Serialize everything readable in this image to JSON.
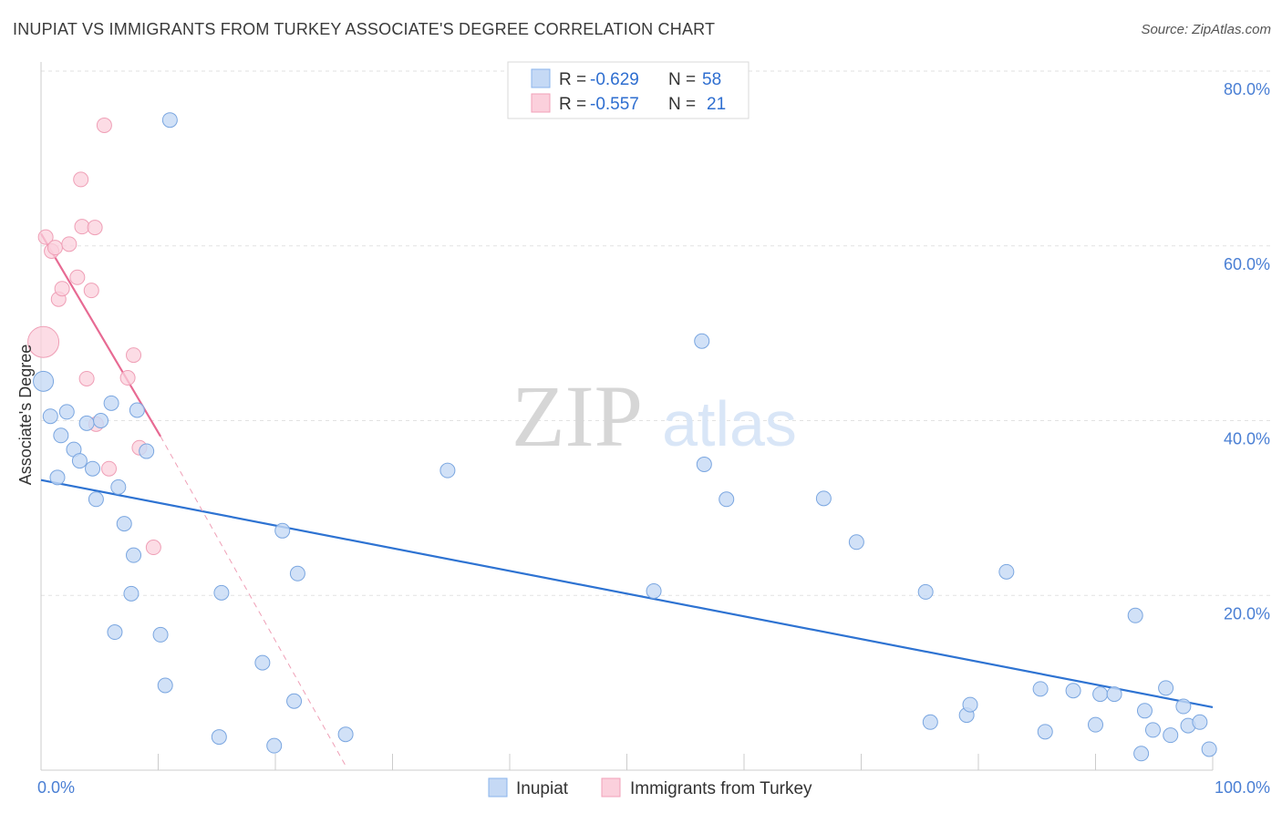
{
  "title": "INUPIAT VS IMMIGRANTS FROM TURKEY ASSOCIATE'S DEGREE CORRELATION CHART",
  "source": "Source: ZipAtlas.com",
  "watermark": {
    "zip": "ZIP",
    "atlas": "atlas"
  },
  "legend": {
    "r_label": "R =",
    "n_label": "N =",
    "rows": [
      {
        "r": "-0.629",
        "n": "58",
        "color": "#8ab4ec",
        "fill": "#c5d9f5"
      },
      {
        "r": "-0.557",
        "n": "21",
        "color": "#f2a0b8",
        "fill": "#fbd0dc"
      }
    ]
  },
  "colors": {
    "blue_fill": "#c5d9f5",
    "blue_stroke": "#7aa6e0",
    "blue_line": "#2e73d2",
    "pink_fill": "#fbd0dc",
    "pink_stroke": "#ef9fb6",
    "pink_line": "#e76a93",
    "tick_text": "#4a7fd4",
    "grid": "#e2e2e2"
  },
  "chart_data": {
    "type": "scatter",
    "ylabel": "Associate's Degree",
    "xlim": [
      0,
      100
    ],
    "ylim": [
      0,
      80
    ],
    "x_tick_labels": [
      "0.0%",
      "100.0%"
    ],
    "y_ticks": [
      20,
      40,
      60,
      80
    ],
    "y_tick_labels": [
      "20.0%",
      "40.0%",
      "60.0%",
      "80.0%"
    ],
    "grid": true,
    "series": [
      {
        "name": "Inupiat",
        "points": [
          [
            0.2,
            44.5
          ],
          [
            0.8,
            40.5
          ],
          [
            1.4,
            33.5
          ],
          [
            1.7,
            38.3
          ],
          [
            2.2,
            41
          ],
          [
            2.8,
            36.7
          ],
          [
            3.3,
            35.4
          ],
          [
            3.9,
            39.7
          ],
          [
            4.4,
            34.5
          ],
          [
            4.7,
            31
          ],
          [
            5.1,
            40
          ],
          [
            6.0,
            42
          ],
          [
            6.3,
            15.8
          ],
          [
            6.6,
            32.4
          ],
          [
            7.1,
            28.2
          ],
          [
            7.7,
            20.2
          ],
          [
            7.9,
            24.6
          ],
          [
            8.2,
            41.2
          ],
          [
            9.0,
            36.5
          ],
          [
            10.2,
            15.5
          ],
          [
            10.6,
            9.7
          ],
          [
            11.0,
            74.4
          ],
          [
            15.2,
            3.8
          ],
          [
            15.4,
            20.3
          ],
          [
            18.9,
            12.3
          ],
          [
            19.9,
            2.8
          ],
          [
            20.6,
            27.4
          ],
          [
            21.6,
            7.9
          ],
          [
            21.9,
            22.5
          ],
          [
            26.0,
            4.1
          ],
          [
            34.7,
            34.3
          ],
          [
            52.3,
            20.5
          ],
          [
            56.4,
            49.1
          ],
          [
            56.6,
            35
          ],
          [
            58.5,
            31
          ],
          [
            66.8,
            31.1
          ],
          [
            69.6,
            26.1
          ],
          [
            75.5,
            20.4
          ],
          [
            75.9,
            5.5
          ],
          [
            79.0,
            6.3
          ],
          [
            79.3,
            7.5
          ],
          [
            82.4,
            22.7
          ],
          [
            85.3,
            9.3
          ],
          [
            85.7,
            4.4
          ],
          [
            88.1,
            9.1
          ],
          [
            90.0,
            5.2
          ],
          [
            90.4,
            8.7
          ],
          [
            91.6,
            8.7
          ],
          [
            93.4,
            17.7
          ],
          [
            93.9,
            1.9
          ],
          [
            94.2,
            6.8
          ],
          [
            94.9,
            4.6
          ],
          [
            96.0,
            9.4
          ],
          [
            96.4,
            4
          ],
          [
            97.5,
            7.3
          ],
          [
            97.9,
            5.1
          ],
          [
            98.9,
            5.5
          ],
          [
            99.7,
            2.4
          ]
        ],
        "trendline": {
          "x": [
            0,
            100
          ],
          "y": [
            33.2,
            7.2
          ]
        }
      },
      {
        "name": "Immigrants from Turkey",
        "points": [
          [
            0.2,
            49
          ],
          [
            0.4,
            61
          ],
          [
            0.9,
            59.4
          ],
          [
            1.2,
            59.8
          ],
          [
            1.5,
            53.9
          ],
          [
            1.8,
            55.1
          ],
          [
            2.4,
            60.2
          ],
          [
            3.1,
            56.4
          ],
          [
            3.4,
            67.6
          ],
          [
            3.5,
            62.2
          ],
          [
            3.9,
            44.8
          ],
          [
            4.3,
            54.9
          ],
          [
            4.6,
            62.1
          ],
          [
            4.7,
            39.6
          ],
          [
            5.4,
            73.8
          ],
          [
            5.8,
            34.5
          ],
          [
            7.4,
            44.9
          ],
          [
            7.9,
            47.5
          ],
          [
            8.4,
            36.9
          ],
          [
            9.6,
            25.5
          ],
          [
            0.5,
            49
          ]
        ],
        "sizes": [
          3,
          1,
          1,
          1,
          1,
          1,
          1,
          1,
          1,
          1,
          1,
          1,
          1,
          1,
          1,
          1,
          1,
          1,
          1,
          1,
          0
        ],
        "trendline": {
          "x": [
            0,
            10.2
          ],
          "y": [
            61.4,
            38.2
          ]
        },
        "trendline_ext": {
          "x": [
            10.2,
            26.0
          ],
          "y": [
            38.2,
            0.5
          ]
        }
      }
    ]
  }
}
